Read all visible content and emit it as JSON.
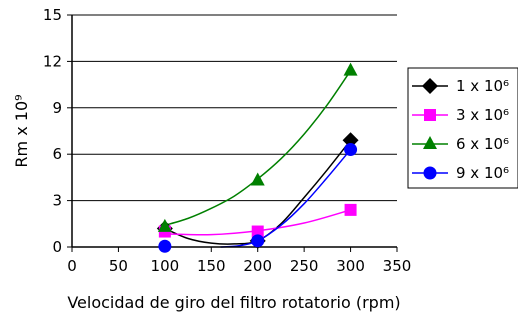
{
  "chart_data": {
    "type": "scatter",
    "xlabel": "Velocidad de giro del filtro rotatorio (rpm)",
    "ylabel": "Rm x 10⁹",
    "xlim": [
      0,
      350
    ],
    "ylim": [
      0,
      15
    ],
    "x_ticks": [
      "0",
      "50",
      "100",
      "150",
      "200",
      "250",
      "300",
      "350"
    ],
    "y_ticks": [
      "0",
      "3",
      "6",
      "9",
      "12",
      "15"
    ],
    "grid": "horizontal",
    "legend_position": "right",
    "series": [
      {
        "name": "1 x 10⁶",
        "marker": "diamond",
        "color": "#000000",
        "x": [
          100,
          200,
          300
        ],
        "y": [
          1.2,
          0.4,
          6.9
        ],
        "fit": [
          [
            100,
            1.2
          ],
          [
            125,
            0.55
          ],
          [
            150,
            0.25
          ],
          [
            175,
            0.2
          ],
          [
            200,
            0.4
          ],
          [
            225,
            1.5
          ],
          [
            250,
            3.2
          ],
          [
            275,
            5.0
          ],
          [
            300,
            6.9
          ]
        ]
      },
      {
        "name": "3 x 10⁶",
        "marker": "square",
        "color": "#ff00ff",
        "x": [
          100,
          200,
          300
        ],
        "y": [
          1.0,
          1.0,
          2.4
        ],
        "fit": [
          [
            100,
            0.85
          ],
          [
            150,
            0.8
          ],
          [
            200,
            1.05
          ],
          [
            250,
            1.55
          ],
          [
            300,
            2.4
          ]
        ]
      },
      {
        "name": "6 x 10⁶",
        "marker": "triangle",
        "color": "#008000",
        "x": [
          100,
          200,
          300
        ],
        "y": [
          1.3,
          4.3,
          11.4
        ],
        "fit": [
          [
            100,
            1.4
          ],
          [
            125,
            1.85
          ],
          [
            150,
            2.5
          ],
          [
            175,
            3.3
          ],
          [
            200,
            4.4
          ],
          [
            225,
            5.7
          ],
          [
            250,
            7.3
          ],
          [
            275,
            9.2
          ],
          [
            300,
            11.4
          ]
        ]
      },
      {
        "name": "9 x 10⁶",
        "marker": "circle",
        "color": "#0000ff",
        "x": [
          100,
          200,
          300
        ],
        "y": [
          0.05,
          0.4,
          6.3
        ],
        "fit": [
          [
            160,
            0.0
          ],
          [
            180,
            0.08
          ],
          [
            200,
            0.4
          ],
          [
            225,
            1.4
          ],
          [
            250,
            2.8
          ],
          [
            275,
            4.5
          ],
          [
            300,
            6.3
          ]
        ]
      }
    ]
  }
}
